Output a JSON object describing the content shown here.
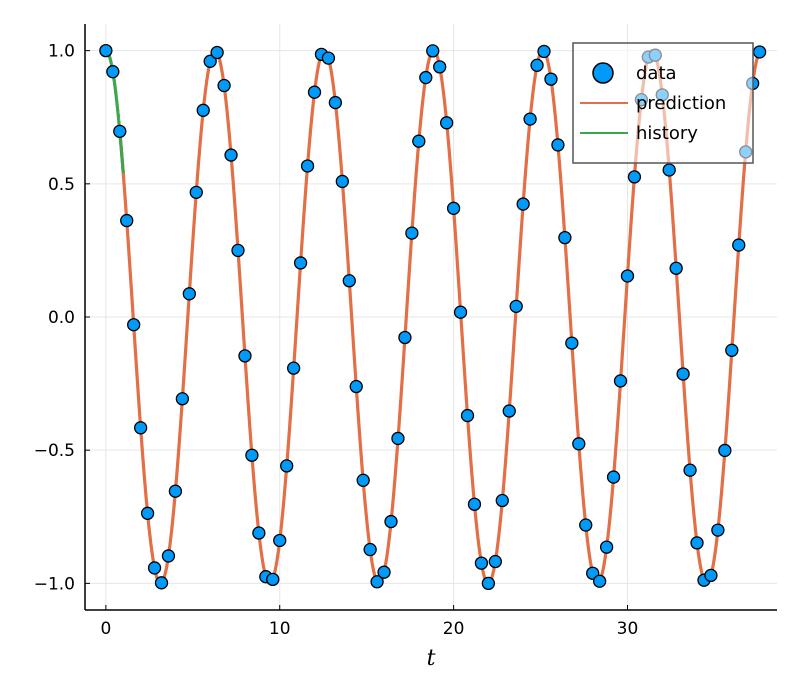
{
  "chart_data": {
    "type": "line",
    "title": "",
    "xlabel": "t",
    "ylabel": "",
    "xlim": [
      -1.2,
      38.6
    ],
    "ylim": [
      -1.1,
      1.1
    ],
    "grid": true,
    "legend_position": "top-right",
    "xticks": [
      0,
      10,
      20,
      30
    ],
    "xtick_labels": [
      "0",
      "10",
      "20",
      "30"
    ],
    "yticks": [
      -1.0,
      -0.5,
      0.0,
      0.5,
      1.0
    ],
    "ytick_labels": [
      "−1.0",
      "−0.5",
      "0.0",
      "0.5",
      "1.0"
    ],
    "colors": {
      "data": "#009AFA",
      "prediction": "#E26F46",
      "history": "#3EA44E",
      "axis": "#000000",
      "grid": "#E6E6E6"
    },
    "series": [
      {
        "name": "data",
        "kind": "scatter",
        "x": [
          0.0,
          0.4,
          0.8,
          1.2,
          1.6,
          2.0,
          2.4,
          2.8,
          3.2,
          3.6,
          4.0,
          4.4,
          4.8,
          5.2,
          5.6,
          6.0,
          6.4,
          6.8,
          7.2,
          7.6,
          8.0,
          8.4,
          8.8,
          9.2,
          9.6,
          10.0,
          10.4,
          10.8,
          11.2,
          11.6,
          12.0,
          12.4,
          12.8,
          13.2,
          13.6,
          14.0,
          14.4,
          14.8,
          15.2,
          15.6,
          16.0,
          16.4,
          16.8,
          17.2,
          17.6,
          18.0,
          18.4,
          18.8,
          19.2,
          19.6,
          20.0,
          20.4,
          20.8,
          21.2,
          21.6,
          22.0,
          22.4,
          22.8,
          23.2,
          23.6,
          24.0,
          24.4,
          24.8,
          25.2,
          25.6,
          26.0,
          26.4,
          26.8,
          27.2,
          27.6,
          28.0,
          28.4,
          28.8,
          29.2,
          29.6,
          30.0,
          30.4,
          30.8,
          31.2,
          31.6,
          32.0,
          32.4,
          32.8,
          33.2,
          33.6,
          34.0,
          34.4,
          34.8,
          35.2,
          35.6,
          36.0,
          36.4,
          36.8,
          37.2,
          37.6
        ],
        "y": [
          1.0,
          0.921,
          0.697,
          0.362,
          -0.029,
          -0.416,
          -0.737,
          -0.942,
          -0.998,
          -0.897,
          -0.654,
          -0.307,
          0.087,
          0.468,
          0.776,
          0.96,
          0.993,
          0.869,
          0.608,
          0.25,
          -0.146,
          -0.519,
          -0.811,
          -0.975,
          -0.985,
          -0.839,
          -0.559,
          -0.192,
          0.203,
          0.567,
          0.844,
          0.986,
          0.972,
          0.805,
          0.509,
          0.136,
          -0.261,
          -0.613,
          -0.873,
          -0.994,
          -0.958,
          -0.768,
          -0.456,
          -0.077,
          0.315,
          0.66,
          0.899,
          0.999,
          0.939,
          0.729,
          0.408,
          0.018,
          -0.37,
          -0.703,
          -0.924,
          -1.0,
          -0.918,
          -0.689,
          -0.353,
          0.04,
          0.424,
          0.743,
          0.945,
          0.997,
          0.893,
          0.646,
          0.298,
          -0.098,
          -0.476,
          -0.781,
          -0.962,
          -0.992,
          -0.864,
          -0.601,
          -0.24,
          0.154,
          0.526,
          0.816,
          0.976,
          0.983,
          0.834,
          0.552,
          0.183,
          -0.214,
          -0.575,
          -0.848,
          -0.988,
          -0.97,
          -0.8,
          -0.501,
          -0.125,
          0.27,
          0.62,
          0.877,
          0.995
        ]
      },
      {
        "name": "prediction",
        "kind": "line",
        "function": "cos(t)",
        "x_range": [
          0.8,
          37.6
        ]
      },
      {
        "name": "history",
        "kind": "line",
        "function": "cos(t)",
        "x_range": [
          0.0,
          1.0
        ]
      }
    ]
  }
}
